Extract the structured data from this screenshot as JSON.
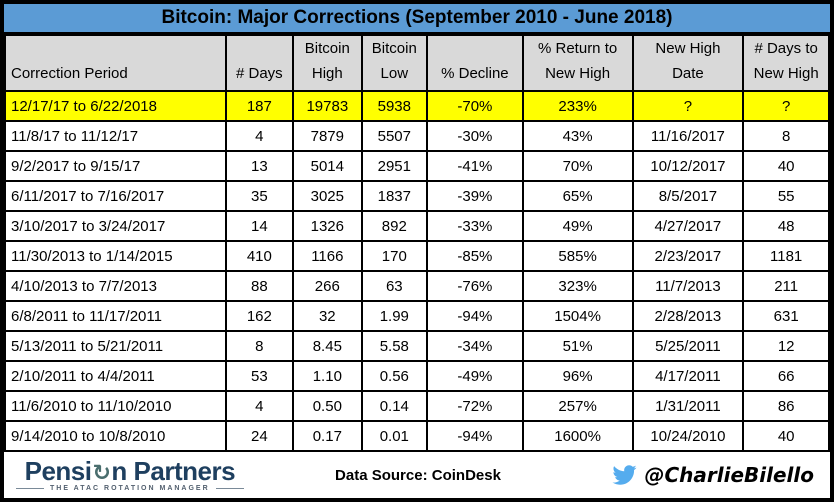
{
  "chart_data": {
    "type": "table",
    "title": "Bitcoin: Major Corrections (September 2010 - June 2018)",
    "columns": [
      {
        "label": "Correction Period",
        "lines": [
          "Correction Period"
        ]
      },
      {
        "label": "# Days",
        "lines": [
          "# Days"
        ]
      },
      {
        "label": "Bitcoin High",
        "lines": [
          "Bitcoin",
          "High"
        ]
      },
      {
        "label": "Bitcoin Low",
        "lines": [
          "Bitcoin",
          "Low"
        ]
      },
      {
        "label": "% Decline",
        "lines": [
          "% Decline"
        ]
      },
      {
        "label": "% Return to New High",
        "lines": [
          "% Return to",
          "New High"
        ]
      },
      {
        "label": "New High Date",
        "lines": [
          "New High",
          "Date"
        ]
      },
      {
        "label": "# Days to New High",
        "lines": [
          "# Days to",
          "New High"
        ]
      }
    ],
    "rows": [
      [
        "12/17/17 to 6/22/2018",
        "187",
        "19783",
        "5938",
        "-70%",
        "233%",
        "?",
        "?"
      ],
      [
        "11/8/17 to 11/12/17",
        "4",
        "7879",
        "5507",
        "-30%",
        "43%",
        "11/16/2017",
        "8"
      ],
      [
        "9/2/2017 to 9/15/17",
        "13",
        "5014",
        "2951",
        "-41%",
        "70%",
        "10/12/2017",
        "40"
      ],
      [
        "6/11/2017 to 7/16/2017",
        "35",
        "3025",
        "1837",
        "-39%",
        "65%",
        "8/5/2017",
        "55"
      ],
      [
        "3/10/2017 to 3/24/2017",
        "14",
        "1326",
        "892",
        "-33%",
        "49%",
        "4/27/2017",
        "48"
      ],
      [
        "11/30/2013 to 1/14/2015",
        "410",
        "1166",
        "170",
        "-85%",
        "585%",
        "2/23/2017",
        "1181"
      ],
      [
        "4/10/2013 to 7/7/2013",
        "88",
        "266",
        "63",
        "-76%",
        "323%",
        "11/7/2013",
        "211"
      ],
      [
        "6/8/2011 to 11/17/2011",
        "162",
        "32",
        "1.99",
        "-94%",
        "1504%",
        "2/28/2013",
        "631"
      ],
      [
        "5/13/2011 to 5/21/2011",
        "8",
        "8.45",
        "5.58",
        "-34%",
        "51%",
        "5/25/2011",
        "12"
      ],
      [
        "2/10/2011 to 4/4/2011",
        "53",
        "1.10",
        "0.56",
        "-49%",
        "96%",
        "4/17/2011",
        "66"
      ],
      [
        "11/6/2010 to 11/10/2010",
        "4",
        "0.50",
        "0.14",
        "-72%",
        "257%",
        "1/31/2011",
        "86"
      ],
      [
        "9/14/2010 to 10/8/2010",
        "24",
        "0.17",
        "0.01",
        "-94%",
        "1600%",
        "10/24/2010",
        "40"
      ]
    ],
    "highlighted_row_index": 0
  },
  "footer": {
    "logo_text_before_icon": "Pensi",
    "logo_rotation_glyph": "↻",
    "logo_text_after_icon": "n Partners",
    "logo_tagline": "THE ATAC ROTATION MANAGER",
    "data_source": "Data Source: CoinDesk",
    "twitter_handle": "@CharlieBilello"
  },
  "colors": {
    "title_bg": "#5b9bd5",
    "header_bg": "#d9d9d9",
    "highlight_row_bg": "#ffff00",
    "border": "#000000",
    "logo_navy": "#1e3f5f",
    "twitter_blue": "#55acee"
  }
}
